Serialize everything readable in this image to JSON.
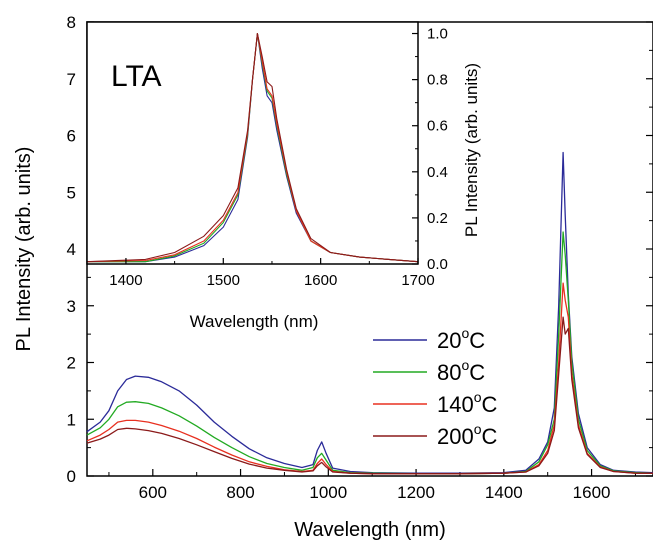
{
  "chart_data": [
    {
      "type": "line",
      "role": "main",
      "xlabel": "Wavelength (nm)",
      "ylabel": "PL Intensity (arb. units)",
      "xlim": [
        450,
        1740
      ],
      "ylim": [
        0,
        8
      ],
      "xticks": [
        600,
        800,
        1000,
        1200,
        1400,
        1600
      ],
      "yticks": [
        0,
        1,
        2,
        3,
        4,
        5,
        6,
        7,
        8
      ],
      "grid": false,
      "legend_position": "lower-right-center",
      "series": [
        {
          "name": "20°C",
          "color": "#2b2b99",
          "points": [
            [
              450,
              0.78
            ],
            [
              480,
              0.95
            ],
            [
              500,
              1.15
            ],
            [
              520,
              1.5
            ],
            [
              540,
              1.7
            ],
            [
              560,
              1.76
            ],
            [
              590,
              1.74
            ],
            [
              620,
              1.66
            ],
            [
              660,
              1.5
            ],
            [
              700,
              1.25
            ],
            [
              740,
              0.95
            ],
            [
              780,
              0.7
            ],
            [
              820,
              0.48
            ],
            [
              860,
              0.32
            ],
            [
              900,
              0.22
            ],
            [
              940,
              0.15
            ],
            [
              965,
              0.2
            ],
            [
              975,
              0.45
            ],
            [
              985,
              0.6
            ],
            [
              995,
              0.4
            ],
            [
              1010,
              0.14
            ],
            [
              1050,
              0.08
            ],
            [
              1100,
              0.06
            ],
            [
              1200,
              0.05
            ],
            [
              1300,
              0.05
            ],
            [
              1400,
              0.06
            ],
            [
              1450,
              0.1
            ],
            [
              1480,
              0.3
            ],
            [
              1500,
              0.6
            ],
            [
              1515,
              1.2
            ],
            [
              1525,
              3.0
            ],
            [
              1535,
              5.7
            ],
            [
              1540,
              4.6
            ],
            [
              1547,
              3.2
            ],
            [
              1555,
              2.1
            ],
            [
              1570,
              1.1
            ],
            [
              1590,
              0.5
            ],
            [
              1620,
              0.2
            ],
            [
              1650,
              0.1
            ],
            [
              1700,
              0.07
            ],
            [
              1740,
              0.06
            ]
          ]
        },
        {
          "name": "80°C",
          "color": "#22aa22",
          "points": [
            [
              450,
              0.72
            ],
            [
              480,
              0.85
            ],
            [
              500,
              1.0
            ],
            [
              520,
              1.22
            ],
            [
              540,
              1.3
            ],
            [
              560,
              1.31
            ],
            [
              590,
              1.28
            ],
            [
              620,
              1.2
            ],
            [
              660,
              1.06
            ],
            [
              700,
              0.88
            ],
            [
              740,
              0.68
            ],
            [
              780,
              0.5
            ],
            [
              820,
              0.34
            ],
            [
              860,
              0.22
            ],
            [
              900,
              0.15
            ],
            [
              940,
              0.1
            ],
            [
              965,
              0.15
            ],
            [
              975,
              0.32
            ],
            [
              985,
              0.4
            ],
            [
              995,
              0.28
            ],
            [
              1010,
              0.1
            ],
            [
              1050,
              0.06
            ],
            [
              1100,
              0.05
            ],
            [
              1200,
              0.04
            ],
            [
              1300,
              0.04
            ],
            [
              1400,
              0.05
            ],
            [
              1450,
              0.08
            ],
            [
              1480,
              0.25
            ],
            [
              1500,
              0.55
            ],
            [
              1515,
              1.0
            ],
            [
              1525,
              2.5
            ],
            [
              1535,
              4.3
            ],
            [
              1540,
              3.9
            ],
            [
              1547,
              3.1
            ],
            [
              1555,
              2.0
            ],
            [
              1570,
              1.0
            ],
            [
              1590,
              0.45
            ],
            [
              1620,
              0.18
            ],
            [
              1650,
              0.09
            ],
            [
              1700,
              0.06
            ],
            [
              1740,
              0.05
            ]
          ]
        },
        {
          "name": "140°C",
          "color": "#e83020",
          "points": [
            [
              450,
              0.62
            ],
            [
              480,
              0.72
            ],
            [
              500,
              0.82
            ],
            [
              520,
              0.95
            ],
            [
              540,
              0.98
            ],
            [
              560,
              0.98
            ],
            [
              590,
              0.95
            ],
            [
              620,
              0.89
            ],
            [
              660,
              0.79
            ],
            [
              700,
              0.66
            ],
            [
              740,
              0.51
            ],
            [
              780,
              0.37
            ],
            [
              820,
              0.25
            ],
            [
              860,
              0.17
            ],
            [
              900,
              0.11
            ],
            [
              940,
              0.08
            ],
            [
              965,
              0.1
            ],
            [
              975,
              0.22
            ],
            [
              985,
              0.3
            ],
            [
              995,
              0.2
            ],
            [
              1010,
              0.08
            ],
            [
              1050,
              0.05
            ],
            [
              1100,
              0.04
            ],
            [
              1200,
              0.04
            ],
            [
              1300,
              0.04
            ],
            [
              1400,
              0.05
            ],
            [
              1450,
              0.07
            ],
            [
              1480,
              0.2
            ],
            [
              1500,
              0.45
            ],
            [
              1515,
              0.9
            ],
            [
              1525,
              2.0
            ],
            [
              1535,
              3.4
            ],
            [
              1540,
              3.1
            ],
            [
              1547,
              2.8
            ],
            [
              1555,
              1.8
            ],
            [
              1570,
              0.9
            ],
            [
              1590,
              0.4
            ],
            [
              1620,
              0.16
            ],
            [
              1650,
              0.08
            ],
            [
              1700,
              0.05
            ],
            [
              1740,
              0.05
            ]
          ]
        },
        {
          "name": "200°C",
          "color": "#8b1a1a",
          "points": [
            [
              450,
              0.58
            ],
            [
              480,
              0.65
            ],
            [
              500,
              0.72
            ],
            [
              520,
              0.82
            ],
            [
              540,
              0.84
            ],
            [
              560,
              0.83
            ],
            [
              590,
              0.8
            ],
            [
              620,
              0.75
            ],
            [
              660,
              0.66
            ],
            [
              700,
              0.55
            ],
            [
              740,
              0.43
            ],
            [
              780,
              0.31
            ],
            [
              820,
              0.21
            ],
            [
              860,
              0.14
            ],
            [
              900,
              0.1
            ],
            [
              940,
              0.07
            ],
            [
              965,
              0.09
            ],
            [
              975,
              0.18
            ],
            [
              985,
              0.24
            ],
            [
              995,
              0.16
            ],
            [
              1010,
              0.07
            ],
            [
              1050,
              0.05
            ],
            [
              1100,
              0.04
            ],
            [
              1200,
              0.04
            ],
            [
              1300,
              0.04
            ],
            [
              1400,
              0.05
            ],
            [
              1450,
              0.07
            ],
            [
              1480,
              0.18
            ],
            [
              1500,
              0.4
            ],
            [
              1515,
              0.8
            ],
            [
              1525,
              1.8
            ],
            [
              1535,
              2.8
            ],
            [
              1540,
              2.5
            ],
            [
              1547,
              2.6
            ],
            [
              1555,
              1.7
            ],
            [
              1570,
              0.85
            ],
            [
              1590,
              0.38
            ],
            [
              1620,
              0.15
            ],
            [
              1650,
              0.08
            ],
            [
              1700,
              0.05
            ],
            [
              1740,
              0.05
            ]
          ]
        }
      ]
    },
    {
      "type": "line",
      "role": "inset",
      "title": "LTA",
      "xlabel": "Wavelength (nm)",
      "ylabel": "PL Intensity (arb. units)",
      "xlim": [
        1360,
        1700
      ],
      "ylim": [
        0,
        1.05
      ],
      "xticks": [
        1400,
        1500,
        1600,
        1700
      ],
      "yticks": [
        0.0,
        0.2,
        0.4,
        0.6,
        0.8,
        1.0
      ],
      "yaxis_side": "right",
      "grid": false,
      "series": [
        {
          "color": "#2b2b99",
          "points": [
            [
              1360,
              0.01
            ],
            [
              1420,
              0.01
            ],
            [
              1450,
              0.03
            ],
            [
              1480,
              0.08
            ],
            [
              1500,
              0.16
            ],
            [
              1515,
              0.28
            ],
            [
              1525,
              0.55
            ],
            [
              1530,
              0.8
            ],
            [
              1535,
              1.0
            ],
            [
              1540,
              0.85
            ],
            [
              1545,
              0.73
            ],
            [
              1550,
              0.7
            ],
            [
              1555,
              0.58
            ],
            [
              1565,
              0.38
            ],
            [
              1575,
              0.22
            ],
            [
              1590,
              0.1
            ],
            [
              1610,
              0.05
            ],
            [
              1640,
              0.03
            ],
            [
              1670,
              0.02
            ],
            [
              1700,
              0.01
            ]
          ]
        },
        {
          "color": "#22aa22",
          "points": [
            [
              1360,
              0.01
            ],
            [
              1420,
              0.01
            ],
            [
              1450,
              0.035
            ],
            [
              1480,
              0.09
            ],
            [
              1500,
              0.18
            ],
            [
              1515,
              0.3
            ],
            [
              1525,
              0.56
            ],
            [
              1530,
              0.8
            ],
            [
              1535,
              1.0
            ],
            [
              1540,
              0.87
            ],
            [
              1545,
              0.75
            ],
            [
              1550,
              0.72
            ],
            [
              1555,
              0.6
            ],
            [
              1565,
              0.39
            ],
            [
              1575,
              0.23
            ],
            [
              1590,
              0.1
            ],
            [
              1610,
              0.05
            ],
            [
              1640,
              0.03
            ],
            [
              1670,
              0.02
            ],
            [
              1700,
              0.01
            ]
          ]
        },
        {
          "color": "#e83020",
          "points": [
            [
              1360,
              0.01
            ],
            [
              1420,
              0.015
            ],
            [
              1450,
              0.04
            ],
            [
              1480,
              0.1
            ],
            [
              1500,
              0.19
            ],
            [
              1515,
              0.31
            ],
            [
              1525,
              0.57
            ],
            [
              1530,
              0.8
            ],
            [
              1535,
              1.0
            ],
            [
              1540,
              0.88
            ],
            [
              1545,
              0.76
            ],
            [
              1550,
              0.73
            ],
            [
              1555,
              0.61
            ],
            [
              1565,
              0.4
            ],
            [
              1575,
              0.23
            ],
            [
              1590,
              0.1
            ],
            [
              1610,
              0.05
            ],
            [
              1640,
              0.03
            ],
            [
              1670,
              0.02
            ],
            [
              1700,
              0.01
            ]
          ]
        },
        {
          "color": "#8b1a1a",
          "points": [
            [
              1360,
              0.01
            ],
            [
              1420,
              0.02
            ],
            [
              1450,
              0.05
            ],
            [
              1480,
              0.12
            ],
            [
              1500,
              0.21
            ],
            [
              1515,
              0.33
            ],
            [
              1525,
              0.58
            ],
            [
              1530,
              0.8
            ],
            [
              1535,
              1.0
            ],
            [
              1540,
              0.9
            ],
            [
              1545,
              0.79
            ],
            [
              1550,
              0.77
            ],
            [
              1555,
              0.63
            ],
            [
              1565,
              0.41
            ],
            [
              1575,
              0.24
            ],
            [
              1590,
              0.11
            ],
            [
              1610,
              0.05
            ],
            [
              1640,
              0.03
            ],
            [
              1670,
              0.02
            ],
            [
              1700,
              0.01
            ]
          ]
        }
      ]
    }
  ],
  "legend_entries": [
    {
      "label_base": "20",
      "label_deg": "o",
      "label_unit": "C",
      "color": "#2b2b99"
    },
    {
      "label_base": "80",
      "label_deg": "o",
      "label_unit": "C",
      "color": "#22aa22"
    },
    {
      "label_base": "140",
      "label_deg": "o",
      "label_unit": "C",
      "color": "#e83020"
    },
    {
      "label_base": "200",
      "label_deg": "o",
      "label_unit": "C",
      "color": "#8b1a1a"
    }
  ]
}
